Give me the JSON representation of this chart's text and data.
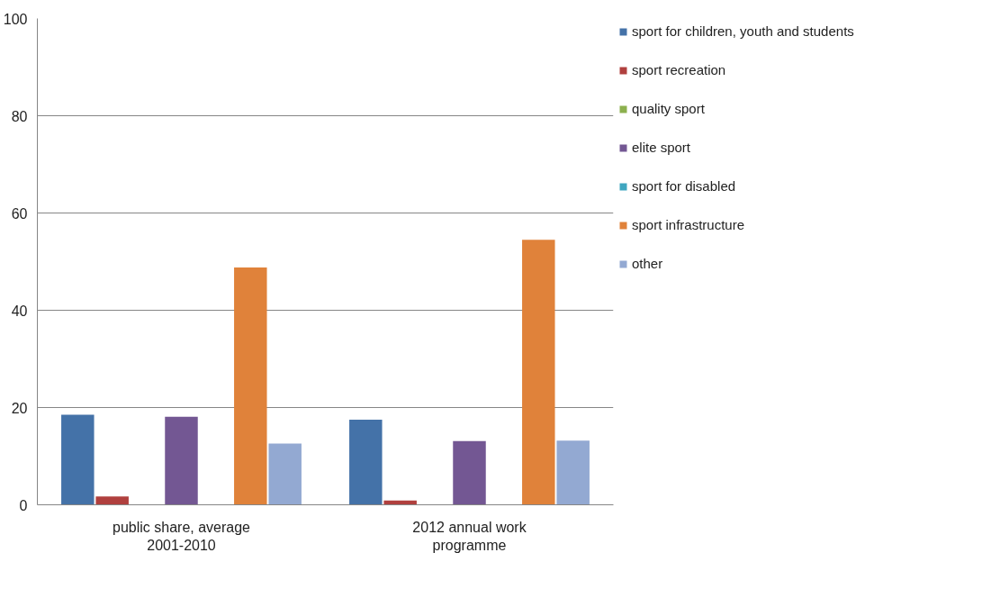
{
  "chart_data": {
    "type": "bar",
    "categories": [
      "public share, average 2001-2010",
      "2012 annual work programme"
    ],
    "series": [
      {
        "name": "sport for children, youth and students",
        "color": "#4472a8",
        "values": [
          18.5,
          17.5
        ]
      },
      {
        "name": "sport recreation",
        "color": "#b0403e",
        "values": [
          1.7,
          0.9
        ]
      },
      {
        "name": "quality sport",
        "color": "#8cb04e",
        "values": [
          0,
          0
        ]
      },
      {
        "name": "elite sport",
        "color": "#735793",
        "values": [
          18.1,
          13.1
        ]
      },
      {
        "name": "sport for disabled",
        "color": "#3fa6c0",
        "values": [
          0,
          0
        ]
      },
      {
        "name": "sport infrastructure",
        "color": "#e0823a",
        "values": [
          48.8,
          54.5
        ]
      },
      {
        "name": "other",
        "color": "#93a9d2",
        "values": [
          12.6,
          13.2
        ]
      }
    ],
    "ylim": [
      0,
      100
    ],
    "yticks": [
      0,
      20,
      40,
      60,
      80,
      100
    ],
    "grid": "y",
    "legend": "right"
  }
}
